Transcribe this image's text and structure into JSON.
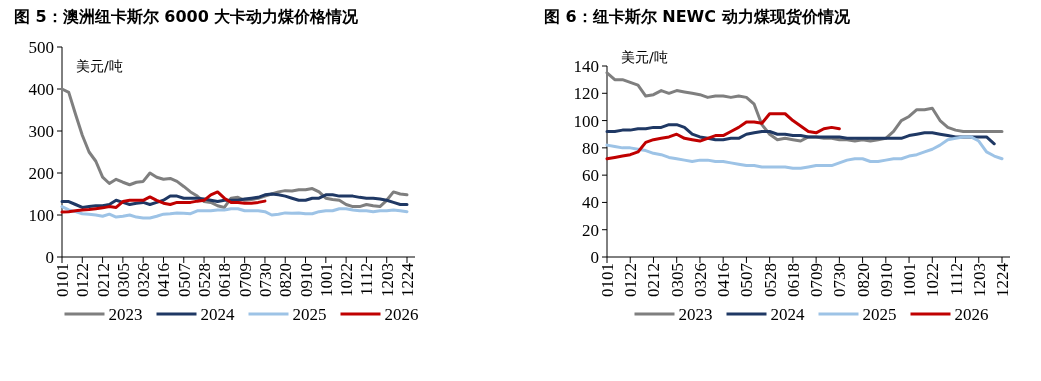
{
  "chart_data": [
    {
      "type": "line",
      "title": "图 5：澳洲纽卡斯尔 6000 大卡动力煤价格情况",
      "ylabel": "美元/吨",
      "ylim": [
        0,
        500
      ],
      "yticks": [
        0,
        100,
        200,
        300,
        400,
        500
      ],
      "legend": "bottom",
      "grid": false,
      "categories": [
        "0101",
        null,
        null,
        "0122",
        null,
        null,
        "0212",
        null,
        null,
        "0305",
        null,
        null,
        "0326",
        null,
        null,
        "0416",
        null,
        null,
        "0507",
        null,
        null,
        "0528",
        null,
        null,
        "0618",
        null,
        null,
        "0709",
        null,
        null,
        "0730",
        null,
        null,
        "0820",
        null,
        null,
        "0910",
        null,
        null,
        "1001",
        null,
        null,
        "1022",
        null,
        null,
        "1112",
        null,
        null,
        "1203",
        null,
        null,
        "1224"
      ],
      "series": [
        {
          "name": "2023",
          "color": "#7f7f7f",
          "values": [
            400,
            392,
            340,
            290,
            250,
            228,
            190,
            175,
            185,
            178,
            172,
            178,
            180,
            200,
            190,
            185,
            187,
            180,
            168,
            155,
            145,
            132,
            130,
            122,
            118,
            140,
            142,
            135,
            137,
            140,
            145,
            150,
            155,
            158,
            157,
            160,
            160,
            163,
            155,
            140,
            137,
            135,
            125,
            120,
            120,
            125,
            122,
            120,
            135,
            155,
            150,
            148
          ]
        },
        {
          "name": "2024",
          "color": "#1f3864",
          "values": [
            132,
            132,
            125,
            118,
            120,
            122,
            122,
            125,
            135,
            130,
            125,
            128,
            130,
            125,
            130,
            135,
            145,
            145,
            140,
            140,
            140,
            138,
            135,
            132,
            135,
            135,
            135,
            138,
            140,
            142,
            148,
            150,
            148,
            145,
            140,
            135,
            135,
            140,
            140,
            148,
            148,
            145,
            145,
            145,
            142,
            140,
            140,
            138,
            135,
            130,
            125,
            125
          ]
        },
        {
          "name": "2025",
          "color": "#9dc3e6",
          "values": [
            120,
            112,
            108,
            103,
            102,
            100,
            97,
            102,
            95,
            97,
            100,
            95,
            93,
            93,
            97,
            102,
            103,
            105,
            104,
            103,
            110,
            110,
            110,
            112,
            112,
            115,
            115,
            110,
            110,
            110,
            108,
            100,
            102,
            105,
            104,
            105,
            103,
            103,
            108,
            110,
            110,
            115,
            115,
            112,
            110,
            110,
            108,
            110,
            110,
            112,
            110,
            108
          ]
        },
        {
          "name": "2026",
          "color": "#c00000",
          "values": [
            107,
            108,
            110,
            112,
            113,
            115,
            117,
            120,
            118,
            132,
            135,
            135,
            135,
            143,
            135,
            128,
            125,
            130,
            130,
            130,
            133,
            135,
            148,
            155,
            140,
            130,
            130,
            128,
            128,
            130,
            133,
            null,
            null,
            null,
            null,
            null,
            null,
            null,
            null,
            null,
            null,
            null,
            null,
            null,
            null,
            null,
            null,
            null,
            null,
            null,
            null,
            null
          ]
        }
      ]
    },
    {
      "type": "line",
      "title": "图 6：纽卡斯尔 NEWC 动力煤现货价情况",
      "ylabel": "美元/吨",
      "ylim": [
        0,
        140
      ],
      "yticks": [
        0,
        20,
        40,
        60,
        80,
        100,
        120,
        140
      ],
      "legend": "bottom",
      "grid": false,
      "categories": [
        "0101",
        null,
        null,
        "0122",
        null,
        null,
        "0212",
        null,
        null,
        "0305",
        null,
        null,
        "0326",
        null,
        null,
        "0416",
        null,
        null,
        "0507",
        null,
        null,
        "0528",
        null,
        null,
        "0618",
        null,
        null,
        "0709",
        null,
        null,
        "0730",
        null,
        null,
        "0820",
        null,
        null,
        "0910",
        null,
        null,
        "1001",
        null,
        null,
        "1022",
        null,
        null,
        "1112",
        null,
        null,
        "1203",
        null,
        null,
        "1224"
      ],
      "series": [
        {
          "name": "2023",
          "color": "#7f7f7f",
          "values": [
            135,
            130,
            130,
            128,
            126,
            118,
            119,
            122,
            120,
            122,
            121,
            120,
            119,
            117,
            118,
            118,
            117,
            118,
            117,
            112,
            97,
            90,
            86,
            87,
            86,
            85,
            88,
            88,
            87,
            87,
            86,
            86,
            85,
            86,
            85,
            86,
            87,
            92,
            100,
            103,
            108,
            108,
            109,
            100,
            95,
            93,
            92,
            92,
            92,
            92,
            92,
            92
          ]
        },
        {
          "name": "2024",
          "color": "#1f3864",
          "values": [
            92,
            92,
            93,
            93,
            94,
            94,
            95,
            95,
            97,
            97,
            95,
            90,
            88,
            87,
            86,
            86,
            87,
            87,
            90,
            91,
            92,
            92,
            90,
            90,
            89,
            89,
            88,
            88,
            88,
            88,
            88,
            87,
            87,
            87,
            87,
            87,
            87,
            87,
            87,
            89,
            90,
            91,
            91,
            90,
            89,
            88,
            88,
            88,
            88,
            88,
            83,
            null
          ]
        },
        {
          "name": "2025",
          "color": "#9dc3e6",
          "values": [
            82,
            81,
            80,
            80,
            79,
            78,
            76,
            75,
            73,
            72,
            71,
            70,
            71,
            71,
            70,
            70,
            69,
            68,
            67,
            67,
            66,
            66,
            66,
            66,
            65,
            65,
            66,
            67,
            67,
            67,
            69,
            71,
            72,
            72,
            70,
            70,
            71,
            72,
            72,
            74,
            75,
            77,
            79,
            82,
            86,
            87,
            88,
            88,
            85,
            77,
            74,
            72
          ]
        },
        {
          "name": "2026",
          "color": "#c00000",
          "values": [
            72,
            73,
            74,
            75,
            77,
            84,
            86,
            87,
            88,
            90,
            87,
            86,
            85,
            87,
            89,
            89,
            92,
            95,
            99,
            99,
            98,
            105,
            105,
            105,
            100,
            96,
            92,
            91,
            94,
            95,
            94,
            null,
            null,
            null,
            null,
            null,
            null,
            null,
            null,
            null,
            null,
            null,
            null,
            null,
            null,
            null,
            null,
            null,
            null,
            null,
            null,
            null
          ]
        }
      ]
    }
  ]
}
